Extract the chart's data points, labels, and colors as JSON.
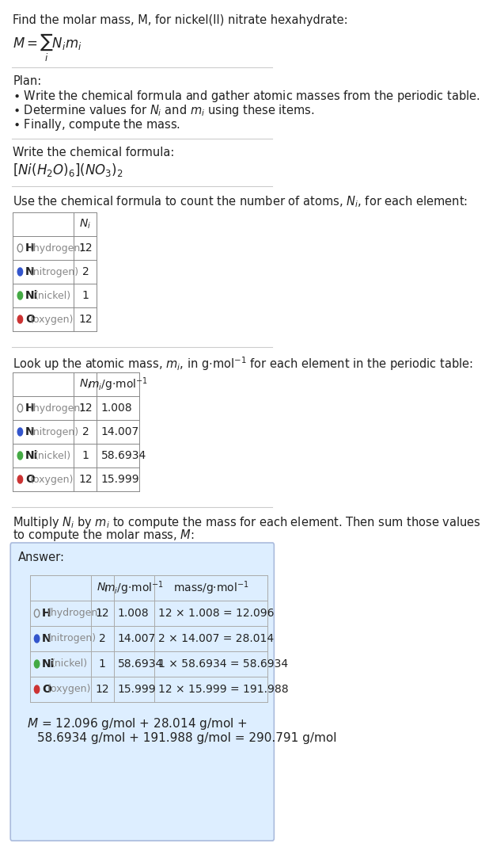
{
  "title_line1": "Find the molar mass, M, for nickel(II) nitrate hexahydrate:",
  "title_formula": "$M = \\sum_i N_i m_i$",
  "plan_header": "Plan:",
  "plan_bullets": [
    "\\u2022 Write the chemical formula and gather atomic masses from the periodic table.",
    "\\u2022 Determine values for $N_i$ and $m_i$ using these items.",
    "\\u2022 Finally, compute the mass."
  ],
  "formula_header": "Write the chemical formula:",
  "chemical_formula": "$[Ni(H_2O)_6](NO_3)_2$",
  "table1_header": "Use the chemical formula to count the number of atoms, $N_i$, for each element:",
  "table2_header": "Look up the atomic mass, $m_i$, in g$\\cdot$mol$^{-1}$ for each element in the periodic table:",
  "table3_header": "Multiply $N_i$ by $m_i$ to compute the mass for each element. Then sum those values\nto compute the molar mass, $M$:",
  "elements": [
    "H (hydrogen)",
    "N (nitrogen)",
    "Ni (nickel)",
    "O (oxygen)"
  ],
  "element_symbols": [
    "H",
    "N",
    "Ni",
    "O"
  ],
  "element_names": [
    "hydrogen",
    "nitrogen",
    "nickel",
    "oxygen"
  ],
  "dot_colors": [
    "none",
    "#3355cc",
    "#44aa44",
    "#cc3333"
  ],
  "Ni_values": [
    12,
    2,
    1,
    12
  ],
  "mi_values": [
    "1.008",
    "14.007",
    "58.6934",
    "15.999"
  ],
  "mass_expressions": [
    "12 × 1.008 = 12.096",
    "2 × 14.007 = 28.014",
    "1 × 58.6934 = 58.6934",
    "12 × 15.999 = 191.988"
  ],
  "final_answer": "$M$ = 12.096 g/mol + 28.014 g/mol +\n    58.6934 g/mol + 191.988 g/mol = 290.791 g/mol",
  "answer_box_color": "#ddeeff",
  "answer_box_border": "#aabbcc",
  "bg_color": "#ffffff",
  "text_color": "#000000",
  "gray_color": "#555555",
  "table_line_color": "#888888"
}
